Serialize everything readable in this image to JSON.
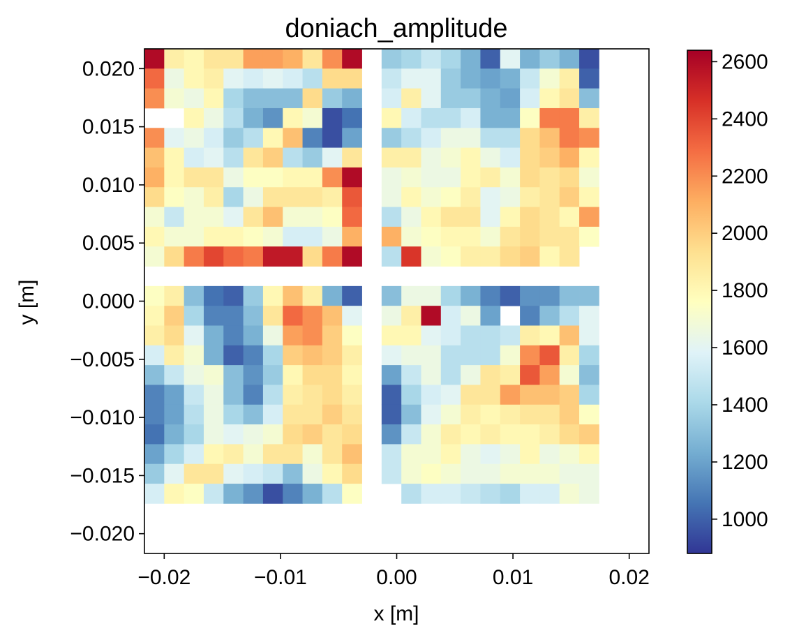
{
  "chart_data": {
    "type": "heatmap",
    "title": "doniach_amplitude",
    "xlabel": "x [m]",
    "ylabel": "y [m]",
    "xlim": [
      -0.0217,
      0.0217
    ],
    "ylim": [
      -0.0217,
      0.0217
    ],
    "cell_size": 0.0017,
    "x_ticks": [
      -0.02,
      -0.01,
      0.0,
      0.01,
      0.02
    ],
    "x_tick_labels": [
      "−0.02",
      "−0.01",
      "0.00",
      "0.01",
      "0.02"
    ],
    "y_ticks": [
      0.02,
      0.015,
      0.01,
      0.005,
      0.0,
      -0.005,
      -0.01,
      -0.015,
      -0.02
    ],
    "y_tick_labels": [
      "0.020",
      "0.015",
      "0.010",
      "0.005",
      "0.000",
      "−0.005",
      "−0.010",
      "−0.015",
      "−0.020"
    ],
    "colorbar": {
      "colormap": "RdYlBu_r",
      "vmin": 880,
      "vmax": 2640,
      "ticks": [
        1000,
        1200,
        1400,
        1600,
        1800,
        2000,
        2200,
        2400,
        2600
      ],
      "tick_labels": [
        "1000",
        "1200",
        "1400",
        "1600",
        "1800",
        "2000",
        "2200",
        "2400",
        "2600"
      ],
      "colors": [
        "#313695",
        "#4575b4",
        "#74add1",
        "#abd9e9",
        "#e0f3f8",
        "#ffffbf",
        "#fee090",
        "#fdae61",
        "#f46d43",
        "#d73027",
        "#a50026"
      ]
    },
    "rows_top_to_bottom": [
      [
        2600,
        1850,
        1800,
        1900,
        1900,
        2150,
        2150,
        2100,
        1900,
        2200,
        2600,
        null,
        1350,
        1400,
        1500,
        1400,
        1250,
        1000,
        1600,
        1250,
        1350,
        1250,
        950
      ],
      [
        2300,
        1650,
        1800,
        1850,
        1600,
        1550,
        1600,
        1550,
        1450,
        1950,
        1950,
        null,
        1500,
        1600,
        1600,
        1350,
        1250,
        1200,
        1250,
        1500,
        1700,
        1850,
        1000
      ],
      [
        2200,
        1700,
        1650,
        1800,
        1400,
        1300,
        1300,
        1300,
        1950,
        1350,
        1250,
        null,
        1550,
        1850,
        1600,
        1350,
        1350,
        1250,
        1200,
        1550,
        1800,
        1900,
        1300
      ],
      [
        null,
        null,
        1800,
        1650,
        1450,
        1250,
        1150,
        1800,
        1700,
        950,
        1050,
        null,
        1800,
        1550,
        1450,
        1450,
        1550,
        1250,
        1250,
        1750,
        2250,
        2250,
        1850
      ],
      [
        2200,
        1600,
        1650,
        1550,
        1350,
        1450,
        1800,
        2050,
        1100,
        950,
        1200,
        null,
        1350,
        1450,
        1550,
        1650,
        1650,
        1450,
        1450,
        1950,
        2050,
        2250,
        2200
      ],
      [
        2050,
        1800,
        1550,
        1600,
        1450,
        1900,
        2000,
        1450,
        1350,
        1600,
        1900,
        null,
        1850,
        1850,
        1650,
        1700,
        1800,
        1650,
        1550,
        1950,
        2000,
        2100,
        1800
      ],
      [
        2100,
        1800,
        1900,
        1900,
        1650,
        1750,
        1750,
        1800,
        1800,
        2200,
        2600,
        null,
        1650,
        1700,
        1650,
        1650,
        1800,
        1850,
        1700,
        1950,
        1900,
        1950,
        1700
      ],
      [
        1950,
        1750,
        1700,
        1850,
        1400,
        1650,
        1900,
        1900,
        1900,
        1850,
        2350,
        null,
        1650,
        1800,
        1700,
        1750,
        1850,
        1600,
        1650,
        1850,
        1900,
        2000,
        1800
      ],
      [
        1700,
        1500,
        1700,
        1700,
        1600,
        1900,
        2050,
        1700,
        1700,
        1750,
        2300,
        null,
        1450,
        1650,
        1800,
        1900,
        1900,
        1600,
        1800,
        1950,
        1900,
        1800,
        2150
      ],
      [
        1800,
        1700,
        1700,
        1800,
        1800,
        1750,
        1700,
        1550,
        1550,
        1650,
        2100,
        null,
        2100,
        1700,
        1750,
        1800,
        1800,
        1700,
        1900,
        1950,
        1900,
        1900,
        1750
      ],
      [
        1700,
        1950,
        2250,
        2400,
        2300,
        2250,
        2550,
        2550,
        1950,
        2250,
        2600,
        null,
        1450,
        2450,
        1700,
        1750,
        1850,
        1850,
        1950,
        2000,
        1800,
        1900,
        null
      ],
      [
        null,
        null,
        null,
        null,
        null,
        null,
        null,
        null,
        null,
        null,
        null,
        null,
        null,
        null,
        null,
        null,
        null,
        null,
        null,
        null,
        null,
        null,
        null
      ],
      [
        1750,
        1850,
        1300,
        1050,
        1000,
        1350,
        1800,
        2050,
        1850,
        1250,
        1000,
        null,
        1300,
        1650,
        1650,
        1400,
        1250,
        1100,
        1000,
        1150,
        1150,
        1300,
        1300
      ],
      [
        1800,
        2000,
        1400,
        1100,
        1100,
        1300,
        1900,
        2300,
        2200,
        2050,
        1600,
        null,
        1650,
        1850,
        2600,
        1550,
        1650,
        1200,
        null,
        1100,
        1300,
        1450,
        1600
      ],
      [
        1850,
        1950,
        1600,
        1250,
        1100,
        1250,
        1650,
        2150,
        2200,
        2000,
        1750,
        null,
        1800,
        1800,
        1600,
        1550,
        1450,
        1450,
        1500,
        1850,
        1800,
        2050,
        1600
      ],
      [
        1550,
        1850,
        1700,
        1250,
        1000,
        1100,
        1400,
        2000,
        2050,
        2000,
        1850,
        null,
        1600,
        1650,
        1650,
        1450,
        1450,
        1450,
        1700,
        2200,
        2350,
        1850,
        1400
      ],
      [
        1300,
        1500,
        1650,
        1700,
        1300,
        1150,
        1350,
        1800,
        1950,
        1950,
        1800,
        null,
        1200,
        1500,
        1650,
        1450,
        1650,
        1900,
        1850,
        2350,
        2150,
        1700,
        1300
      ],
      [
        1100,
        1200,
        1500,
        1650,
        1300,
        1100,
        1450,
        1850,
        1900,
        1950,
        1850,
        null,
        1000,
        1400,
        1550,
        1600,
        1900,
        1900,
        2150,
        2050,
        2050,
        2000,
        1400
      ],
      [
        1100,
        1200,
        1450,
        1650,
        1400,
        1300,
        1550,
        1900,
        1900,
        2000,
        1900,
        null,
        1000,
        1300,
        1600,
        1700,
        1850,
        1800,
        1850,
        1900,
        1900,
        2000,
        1750
      ],
      [
        1050,
        1250,
        1400,
        1650,
        1600,
        1650,
        1700,
        1950,
        2000,
        1900,
        1950,
        null,
        1150,
        1500,
        1700,
        1850,
        1800,
        1850,
        1800,
        1800,
        1850,
        1950,
        2000
      ],
      [
        1200,
        1400,
        1550,
        1800,
        1850,
        1700,
        1900,
        1900,
        1700,
        1900,
        2050,
        null,
        1500,
        1700,
        1700,
        1800,
        1650,
        1600,
        1650,
        1800,
        1650,
        1700,
        1800
      ],
      [
        1350,
        1600,
        1900,
        1900,
        1600,
        1550,
        1500,
        1300,
        1650,
        1800,
        1950,
        null,
        1500,
        1700,
        1750,
        1700,
        1650,
        1650,
        1700,
        1700,
        1700,
        1650,
        1650
      ],
      [
        1550,
        1800,
        1750,
        1500,
        1250,
        1150,
        950,
        1100,
        1250,
        1450,
        1750,
        null,
        null,
        1450,
        1550,
        1550,
        1500,
        1450,
        1400,
        1550,
        1550,
        1700,
        1650
      ]
    ]
  }
}
